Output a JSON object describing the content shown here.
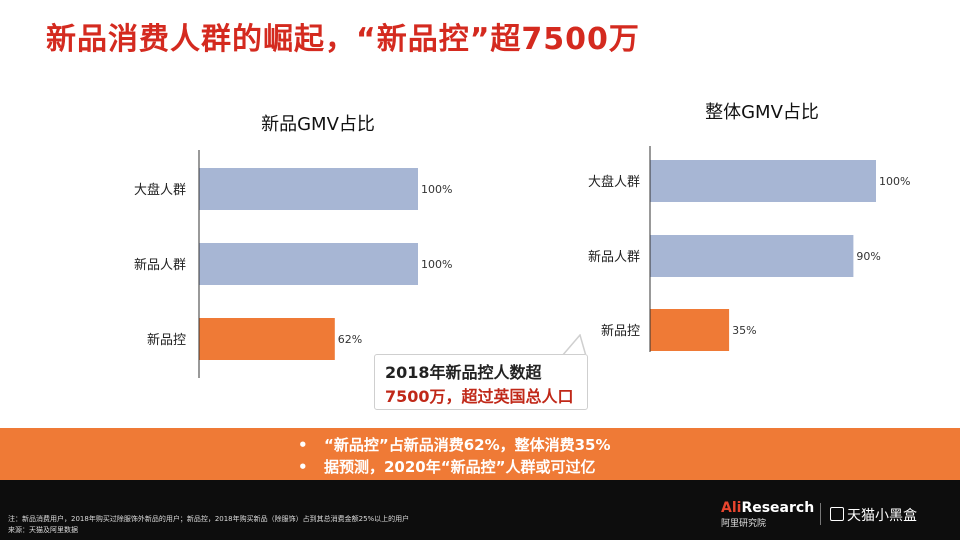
{
  "title": "新品消费人群的崛起，“新品控”超7500万",
  "colors": {
    "blue_bar": "#a7b6d4",
    "orange_bar": "#ef7a36",
    "title_red": "#d42a1f"
  },
  "chart_data": [
    {
      "type": "bar",
      "orientation": "horizontal",
      "title": "新品GMV占比",
      "categories": [
        "大盘人群",
        "新品人群",
        "新品控"
      ],
      "values": [
        100,
        100,
        62
      ],
      "value_labels": [
        "100%",
        "100%",
        "62%"
      ],
      "xlim": [
        0,
        100
      ]
    },
    {
      "type": "bar",
      "orientation": "horizontal",
      "title": "整体GMV占比",
      "categories": [
        "大盘人群",
        "新品人群",
        "新品控"
      ],
      "values": [
        100,
        90,
        35
      ],
      "value_labels": [
        "100%",
        "90%",
        "35%"
      ],
      "xlim": [
        0,
        100
      ]
    }
  ],
  "callout": {
    "line1": "2018年新品控人数超",
    "line2": "7500万，超过英国总人口"
  },
  "band": {
    "bullet": "•",
    "line1": "“新品控”占新品消费62%，整体消费35%",
    "line2": "据预测，2020年“新品控”人群或可过亿"
  },
  "footer": {
    "note1": "注：新品消费用户，2018年购买过除服饰外新品的用户；新品控，2018年购买新品（除服饰）占到其总消费金额25%以上的用户",
    "note2": "来源：天猫及阿里数据",
    "logo_ali_prefix": "Ali",
    "logo_ali_suffix": "Research",
    "logo_ali_sub": "阿里研究院",
    "logo_tmall": "天猫小黑盒"
  }
}
